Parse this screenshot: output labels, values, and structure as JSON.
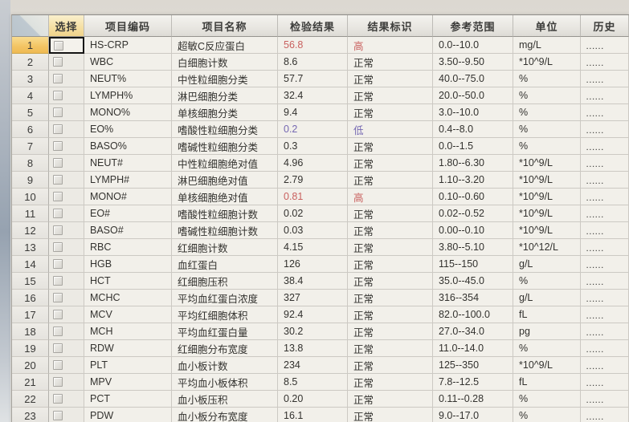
{
  "table": {
    "headers": {
      "corner": "",
      "select": "选择",
      "code": "项目编码",
      "name": "项目名称",
      "result": "检验结果",
      "flag": "结果标识",
      "range": "参考范围",
      "unit": "单位",
      "history": "历史"
    },
    "history_dots": "......",
    "flag_labels": {
      "high": "高",
      "normal": "正常",
      "low": "低"
    },
    "rows": [
      {
        "num": "1",
        "code": "HS-CRP",
        "name": "超敏C反应蛋白",
        "result": "56.8",
        "flag": "高",
        "status": "high",
        "range": "0.0--10.0",
        "unit": "mg/L",
        "selected": true
      },
      {
        "num": "2",
        "code": "WBC",
        "name": "白细胞计数",
        "result": "8.6",
        "flag": "正常",
        "status": "normal",
        "range": "3.50--9.50",
        "unit": "*10^9/L",
        "selected": false
      },
      {
        "num": "3",
        "code": "NEUT%",
        "name": "中性粒细胞分类",
        "result": "57.7",
        "flag": "正常",
        "status": "normal",
        "range": "40.0--75.0",
        "unit": "%",
        "selected": false
      },
      {
        "num": "4",
        "code": "LYMPH%",
        "name": "淋巴细胞分类",
        "result": "32.4",
        "flag": "正常",
        "status": "normal",
        "range": "20.0--50.0",
        "unit": "%",
        "selected": false
      },
      {
        "num": "5",
        "code": "MONO%",
        "name": "单核细胞分类",
        "result": "9.4",
        "flag": "正常",
        "status": "normal",
        "range": "3.0--10.0",
        "unit": "%",
        "selected": false
      },
      {
        "num": "6",
        "code": "EO%",
        "name": "嗜酸性粒细胞分类",
        "result": "0.2",
        "flag": "低",
        "status": "low",
        "range": "0.4--8.0",
        "unit": "%",
        "selected": false
      },
      {
        "num": "7",
        "code": "BASO%",
        "name": "嗜碱性粒细胞分类",
        "result": "0.3",
        "flag": "正常",
        "status": "normal",
        "range": "0.0--1.5",
        "unit": "%",
        "selected": false
      },
      {
        "num": "8",
        "code": "NEUT#",
        "name": "中性粒细胞绝对值",
        "result": "4.96",
        "flag": "正常",
        "status": "normal",
        "range": "1.80--6.30",
        "unit": "*10^9/L",
        "selected": false
      },
      {
        "num": "9",
        "code": "LYMPH#",
        "name": "淋巴细胞绝对值",
        "result": "2.79",
        "flag": "正常",
        "status": "normal",
        "range": "1.10--3.20",
        "unit": "*10^9/L",
        "selected": false
      },
      {
        "num": "10",
        "code": "MONO#",
        "name": "单核细胞绝对值",
        "result": "0.81",
        "flag": "高",
        "status": "high",
        "range": "0.10--0.60",
        "unit": "*10^9/L",
        "selected": false
      },
      {
        "num": "11",
        "code": "EO#",
        "name": "嗜酸性粒细胞计数",
        "result": "0.02",
        "flag": "正常",
        "status": "normal",
        "range": "0.02--0.52",
        "unit": "*10^9/L",
        "selected": false
      },
      {
        "num": "12",
        "code": "BASO#",
        "name": "嗜碱性粒细胞计数",
        "result": "0.03",
        "flag": "正常",
        "status": "normal",
        "range": "0.00--0.10",
        "unit": "*10^9/L",
        "selected": false
      },
      {
        "num": "13",
        "code": "RBC",
        "name": "红细胞计数",
        "result": "4.15",
        "flag": "正常",
        "status": "normal",
        "range": "3.80--5.10",
        "unit": "*10^12/L",
        "selected": false
      },
      {
        "num": "14",
        "code": "HGB",
        "name": "血红蛋白",
        "result": "126",
        "flag": "正常",
        "status": "normal",
        "range": "115--150",
        "unit": "g/L",
        "selected": false
      },
      {
        "num": "15",
        "code": "HCT",
        "name": "红细胞压积",
        "result": "38.4",
        "flag": "正常",
        "status": "normal",
        "range": "35.0--45.0",
        "unit": "%",
        "selected": false
      },
      {
        "num": "16",
        "code": "MCHC",
        "name": "平均血红蛋白浓度",
        "result": "327",
        "flag": "正常",
        "status": "normal",
        "range": "316--354",
        "unit": "g/L",
        "selected": false
      },
      {
        "num": "17",
        "code": "MCV",
        "name": "平均红细胞体积",
        "result": "92.4",
        "flag": "正常",
        "status": "normal",
        "range": "82.0--100.0",
        "unit": "fL",
        "selected": false
      },
      {
        "num": "18",
        "code": "MCH",
        "name": "平均血红蛋白量",
        "result": "30.2",
        "flag": "正常",
        "status": "normal",
        "range": "27.0--34.0",
        "unit": "pg",
        "selected": false
      },
      {
        "num": "19",
        "code": "RDW",
        "name": "红细胞分布宽度",
        "result": "13.8",
        "flag": "正常",
        "status": "normal",
        "range": "11.0--14.0",
        "unit": "%",
        "selected": false
      },
      {
        "num": "20",
        "code": "PLT",
        "name": "血小板计数",
        "result": "234",
        "flag": "正常",
        "status": "normal",
        "range": "125--350",
        "unit": "*10^9/L",
        "selected": false
      },
      {
        "num": "21",
        "code": "MPV",
        "name": "平均血小板体积",
        "result": "8.5",
        "flag": "正常",
        "status": "normal",
        "range": "7.8--12.5",
        "unit": "fL",
        "selected": false
      },
      {
        "num": "22",
        "code": "PCT",
        "name": "血小板压积",
        "result": "0.20",
        "flag": "正常",
        "status": "normal",
        "range": "0.11--0.28",
        "unit": "%",
        "selected": false
      },
      {
        "num": "23",
        "code": "PDW",
        "name": "血小板分布宽度",
        "result": "16.1",
        "flag": "正常",
        "status": "normal",
        "range": "9.0--17.0",
        "unit": "%",
        "selected": false
      }
    ]
  },
  "colors": {
    "high": "#c9615f",
    "low": "#7568b2",
    "normal": "#33322f",
    "selected_row_header": "#f3c463"
  }
}
